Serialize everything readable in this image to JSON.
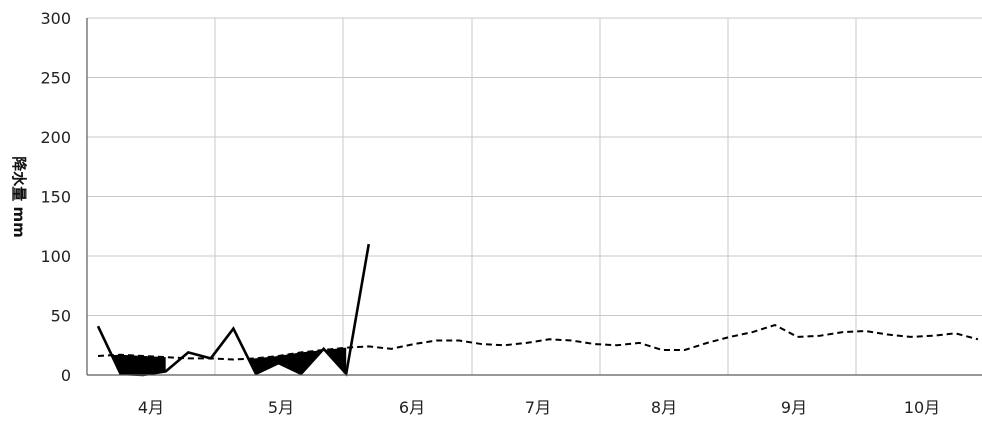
{
  "chart_data": {
    "type": "line",
    "title": "",
    "xlabel": "",
    "ylabel": "降水量 mm",
    "ylim": [
      0,
      300
    ],
    "yticks": [
      0,
      50,
      100,
      150,
      200,
      250,
      300
    ],
    "grid": true,
    "legend": "none",
    "x_unit": "pentad",
    "xlim": [
      0,
      39
    ],
    "month_boundaries": [
      1,
      7,
      13,
      19,
      25,
      31,
      37
    ],
    "categories": [
      "4月",
      "5月",
      "6月",
      "7月",
      "8月",
      "9月",
      "10月"
    ],
    "category_centers": [
      4,
      10,
      16,
      22,
      28,
      34,
      40
    ],
    "series": [
      {
        "style": "solid",
        "color": "#000000",
        "x": [
          1,
          2,
          3,
          4,
          5,
          6,
          7,
          8,
          9,
          10,
          11,
          12,
          13,
          13.5
        ],
        "y": [
          41,
          1,
          0,
          3,
          19,
          14,
          39,
          1,
          10,
          1,
          22,
          1,
          110,
          110
        ]
      },
      {
        "style": "dashed",
        "color": "#000000",
        "x": [
          1,
          2,
          3,
          4,
          5,
          6,
          7,
          8,
          9,
          10,
          11,
          12,
          13,
          14,
          15,
          16,
          17,
          18,
          19,
          20,
          21,
          22,
          23,
          24,
          25,
          26,
          27,
          28,
          29,
          30,
          31,
          32,
          33,
          34,
          35,
          36,
          37,
          38,
          39,
          40
        ],
        "y": [
          16,
          17,
          16,
          15,
          14,
          14,
          13,
          14,
          16,
          19,
          21,
          23,
          24,
          22,
          26,
          29,
          29,
          26,
          25,
          27,
          30,
          29,
          26,
          25,
          27,
          21,
          21,
          27,
          32,
          36,
          42,
          32,
          33,
          36,
          37,
          34,
          32,
          33,
          35,
          30
        ]
      }
    ]
  },
  "colors": {
    "grid": "#c8c8c8",
    "axis": "#5a5a5a",
    "line": "#000000",
    "fill": "#000000"
  }
}
